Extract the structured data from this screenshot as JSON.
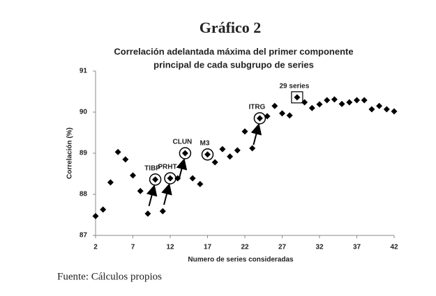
{
  "heading": "Gráfico 2",
  "chart_data": {
    "type": "scatter",
    "title": [
      "Correlación adelantada máxima del primer componente",
      "principal de cada subgrupo de series"
    ],
    "xlabel": "Numero de series consideradas",
    "ylabel": "Correlación (%)",
    "x": [
      2,
      3,
      4,
      5,
      6,
      7,
      8,
      9,
      10,
      11,
      12,
      13,
      14,
      15,
      16,
      17,
      18,
      19,
      20,
      21,
      22,
      23,
      24,
      25,
      26,
      27,
      28,
      29,
      30,
      31,
      32,
      33,
      34,
      35,
      36,
      37,
      38,
      39,
      40,
      41,
      42
    ],
    "values": [
      87.47,
      87.63,
      88.29,
      89.03,
      88.85,
      88.46,
      88.08,
      87.53,
      88.36,
      87.59,
      88.39,
      88.39,
      89.0,
      88.39,
      88.25,
      88.97,
      88.78,
      89.1,
      88.92,
      89.07,
      89.53,
      89.12,
      89.85,
      89.9,
      90.15,
      89.97,
      89.92,
      90.36,
      90.24,
      90.1,
      90.19,
      90.29,
      90.31,
      90.2,
      90.24,
      90.29,
      90.29,
      90.07,
      90.15,
      90.07,
      90.02
    ],
    "color": "#000000",
    "xlim": [
      2,
      42
    ],
    "xticks": [
      2,
      7,
      12,
      17,
      22,
      27,
      32,
      37,
      42
    ],
    "ylim": [
      87,
      91
    ],
    "yticks": [
      87,
      88,
      89,
      90,
      91
    ],
    "annotations": [
      {
        "text": "TIBP",
        "x": 10,
        "shape": "circle",
        "arrow": true
      },
      {
        "text": "PRHT",
        "x": 12,
        "shape": "circle",
        "arrow": true
      },
      {
        "text": "CLUN",
        "x": 14,
        "shape": "circle",
        "arrow": true
      },
      {
        "text": "M3",
        "x": 17,
        "shape": "circle",
        "arrow": false
      },
      {
        "text": "ITRG",
        "x": 24,
        "shape": "circle",
        "arrow": true
      },
      {
        "text": "29 series",
        "x": 29,
        "shape": "square",
        "arrow": false
      }
    ]
  },
  "source": "Fuente: Cálculos propios"
}
